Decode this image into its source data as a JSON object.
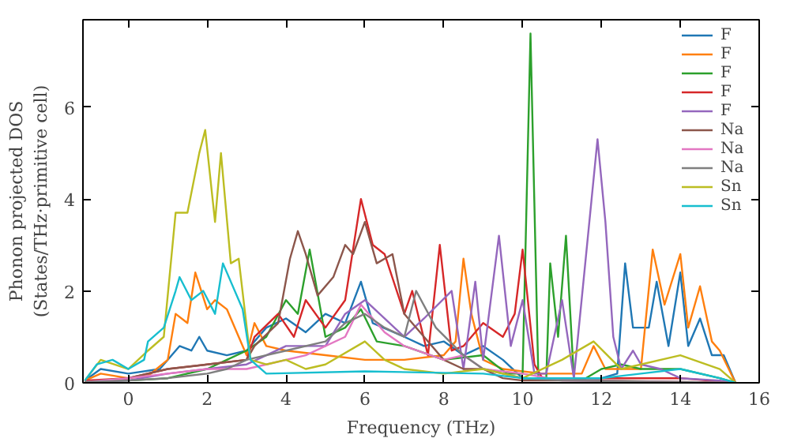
{
  "chart_data": {
    "type": "line",
    "xlabel": "Frequency (THz)",
    "ylabel": "Phonon projected DOS\n(States/THz·primitive cell)",
    "xlim": [
      -1.15,
      16
    ],
    "ylim": [
      0,
      7.9
    ],
    "xticks": [
      0,
      2,
      4,
      6,
      8,
      10,
      12,
      14,
      16
    ],
    "yticks": [
      0,
      2,
      4,
      6
    ],
    "grid": false,
    "legend": "top right",
    "series": [
      {
        "name": "F",
        "color": "#1f77b4",
        "x": [
          -1.1,
          -0.7,
          0,
          0.8,
          1.3,
          1.6,
          1.8,
          2.0,
          2.5,
          3.0,
          3.5,
          4.0,
          4.5,
          5.0,
          5.5,
          5.9,
          6.2,
          7.0,
          7.5,
          8.0,
          8.5,
          9.0,
          9.5,
          10.0,
          11.0,
          12.0,
          12.4,
          12.6,
          12.8,
          13.2,
          13.4,
          13.7,
          14.0,
          14.2,
          14.5,
          14.8,
          15.1,
          15.4
        ],
        "values": [
          0.05,
          0.3,
          0.2,
          0.3,
          0.8,
          0.7,
          1.0,
          0.7,
          0.6,
          0.7,
          1.2,
          1.4,
          1.1,
          1.5,
          1.3,
          2.2,
          1.3,
          1.0,
          0.8,
          0.9,
          0.6,
          0.8,
          0.5,
          0.1,
          0.1,
          0.1,
          0.2,
          2.6,
          1.2,
          1.2,
          2.2,
          0.8,
          2.4,
          0.8,
          1.4,
          0.6,
          0.6,
          0
        ]
      },
      {
        "name": "F",
        "color": "#ff7f0e",
        "x": [
          -1.1,
          -0.7,
          0,
          0.5,
          1.0,
          1.2,
          1.5,
          1.7,
          2.0,
          2.2,
          2.5,
          2.8,
          3.0,
          3.2,
          3.5,
          4.0,
          5.0,
          6.0,
          7.0,
          8.0,
          8.3,
          8.5,
          8.7,
          9.0,
          9.5,
          10.5,
          11.5,
          11.8,
          12.1,
          13.0,
          13.3,
          13.6,
          14.0,
          14.2,
          14.5,
          14.8,
          15.0,
          15.4
        ],
        "values": [
          0.05,
          0.2,
          0.1,
          0.15,
          0.5,
          1.5,
          1.3,
          2.4,
          1.6,
          1.8,
          1.6,
          1.0,
          0.6,
          1.3,
          0.8,
          0.7,
          0.6,
          0.5,
          0.5,
          0.6,
          0.9,
          2.7,
          1.5,
          0.5,
          0.3,
          0.2,
          0.2,
          0.8,
          0.3,
          0.3,
          2.9,
          1.7,
          2.8,
          1.2,
          2.1,
          0.9,
          0.7,
          0
        ]
      },
      {
        "name": "F",
        "color": "#2ca02c",
        "x": [
          -1.1,
          0,
          1.0,
          2.0,
          2.5,
          3.0,
          3.5,
          4.0,
          4.3,
          4.6,
          5.0,
          5.5,
          5.9,
          6.3,
          7.0,
          8.0,
          9.0,
          9.6,
          10.0,
          10.2,
          10.4,
          10.6,
          10.7,
          10.9,
          11.1,
          11.3,
          11.6,
          12.0,
          12.5,
          13.0,
          14.0,
          15.0,
          15.4
        ],
        "values": [
          0.02,
          0.05,
          0.1,
          0.3,
          0.5,
          0.7,
          1.0,
          1.8,
          1.5,
          2.9,
          1.0,
          1.2,
          1.6,
          0.9,
          0.8,
          0.5,
          0.6,
          0.2,
          0.2,
          7.6,
          0.1,
          0.1,
          2.6,
          1.0,
          3.2,
          0.1,
          0.1,
          0.3,
          0.4,
          0.3,
          0.3,
          0.1,
          0
        ]
      },
      {
        "name": "F",
        "color": "#d62728",
        "x": [
          -1.1,
          0,
          1.0,
          2.0,
          3.0,
          3.2,
          3.8,
          4.2,
          4.5,
          5.0,
          5.5,
          5.9,
          6.2,
          6.5,
          7.0,
          7.2,
          7.6,
          7.9,
          8.2,
          8.5,
          9.0,
          9.5,
          9.8,
          10.0,
          10.3,
          10.5,
          12.0,
          14.0,
          15.4
        ],
        "values": [
          0.05,
          0.1,
          0.3,
          0.4,
          0.5,
          1.0,
          1.5,
          1.0,
          1.8,
          1.2,
          1.8,
          4.0,
          3.0,
          2.8,
          1.5,
          2.0,
          0.6,
          3.0,
          0.7,
          0.8,
          1.3,
          1.0,
          1.5,
          2.9,
          0.4,
          0.1,
          0.1,
          0.1,
          0
        ]
      },
      {
        "name": "F",
        "color": "#9467bd",
        "x": [
          -1.1,
          0,
          1.0,
          2.0,
          3.0,
          3.5,
          4.0,
          5.0,
          5.5,
          6.0,
          7.0,
          7.5,
          8.2,
          8.5,
          8.8,
          9.0,
          9.4,
          9.7,
          10.0,
          10.3,
          10.6,
          11.0,
          11.3,
          11.6,
          11.9,
          12.1,
          12.3,
          12.5,
          12.8,
          13.0,
          13.5,
          14.0,
          15.0,
          15.4
        ],
        "values": [
          0.02,
          0.05,
          0.2,
          0.3,
          0.4,
          0.6,
          0.8,
          0.8,
          1.5,
          1.8,
          1.0,
          1.4,
          2.0,
          0.3,
          2.2,
          0.5,
          3.2,
          0.8,
          1.8,
          0.2,
          0.2,
          1.8,
          0.1,
          2.7,
          5.3,
          3.5,
          1.0,
          0.3,
          0.7,
          0.4,
          0.3,
          0.1,
          0.05,
          0
        ]
      },
      {
        "name": "Na",
        "color": "#8c564b",
        "x": [
          -1.1,
          0,
          1.0,
          2.0,
          3.0,
          3.2,
          3.8,
          4.1,
          4.3,
          4.5,
          4.8,
          5.2,
          5.5,
          5.7,
          6.0,
          6.3,
          6.7,
          7.0,
          7.5,
          8.0,
          8.5,
          9.0,
          9.5,
          10.0,
          12.0,
          15.4
        ],
        "values": [
          0.02,
          0.1,
          0.3,
          0.4,
          0.5,
          0.8,
          1.3,
          2.7,
          3.3,
          2.8,
          1.9,
          2.3,
          3.0,
          2.8,
          3.5,
          2.6,
          2.8,
          1.5,
          1.0,
          0.5,
          0.3,
          0.3,
          0.1,
          0.05,
          0.05,
          0
        ]
      },
      {
        "name": "Na",
        "color": "#e377c2",
        "x": [
          -1.1,
          0,
          1.0,
          2.0,
          3.0,
          3.5,
          4.5,
          5.5,
          5.9,
          6.5,
          7.0,
          8.0,
          8.5,
          9.0,
          10.0,
          11.0,
          15.4
        ],
        "values": [
          0.02,
          0.1,
          0.2,
          0.3,
          0.3,
          0.4,
          0.6,
          1.0,
          1.7,
          1.1,
          0.8,
          0.5,
          0.6,
          0.3,
          0.2,
          0.05,
          0
        ]
      },
      {
        "name": "Na",
        "color": "#7f7f7f",
        "x": [
          -1.1,
          0,
          1.0,
          2.0,
          2.5,
          3.0,
          4.0,
          5.0,
          5.5,
          6.0,
          6.5,
          7.0,
          7.3,
          7.8,
          8.5,
          9.0,
          10.0,
          11.0,
          15.4
        ],
        "values": [
          0.02,
          0.05,
          0.1,
          0.2,
          0.3,
          0.5,
          0.7,
          0.9,
          1.3,
          1.5,
          1.2,
          1.0,
          2.0,
          1.2,
          0.6,
          0.3,
          0.1,
          0.05,
          0
        ]
      },
      {
        "name": "Sn",
        "color": "#bcbd22",
        "x": [
          -1.1,
          -0.7,
          0,
          0.5,
          0.9,
          1.2,
          1.5,
          1.8,
          1.95,
          2.2,
          2.35,
          2.6,
          2.8,
          3.1,
          3.5,
          4.0,
          4.5,
          5.0,
          6.0,
          6.5,
          7.0,
          8.0,
          9.0,
          10.0,
          11.0,
          11.8,
          12.5,
          14.0,
          15.0,
          15.4
        ],
        "values": [
          0.05,
          0.5,
          0.3,
          0.7,
          1.0,
          3.7,
          3.7,
          5.0,
          5.5,
          3.5,
          5.0,
          2.6,
          2.7,
          0.5,
          0.4,
          0.5,
          0.3,
          0.4,
          0.9,
          0.5,
          0.3,
          0.2,
          0.3,
          0.1,
          0.5,
          0.9,
          0.3,
          0.6,
          0.3,
          0
        ]
      },
      {
        "name": "Sn",
        "color": "#17becf",
        "x": [
          -1.1,
          -0.8,
          -0.4,
          0,
          0.4,
          0.5,
          0.9,
          1.2,
          1.3,
          1.6,
          1.9,
          2.2,
          2.4,
          2.6,
          2.9,
          3.1,
          3.5,
          6.0,
          9.0,
          10.0,
          12.0,
          13.0,
          14.0,
          15.0,
          15.4
        ],
        "values": [
          0.05,
          0.4,
          0.5,
          0.3,
          0.5,
          0.9,
          1.2,
          2.0,
          2.3,
          1.8,
          2.0,
          1.5,
          2.6,
          2.2,
          1.6,
          0.5,
          0.2,
          0.25,
          0.2,
          0.1,
          0.1,
          0.2,
          0.3,
          0.1,
          0
        ]
      }
    ]
  }
}
